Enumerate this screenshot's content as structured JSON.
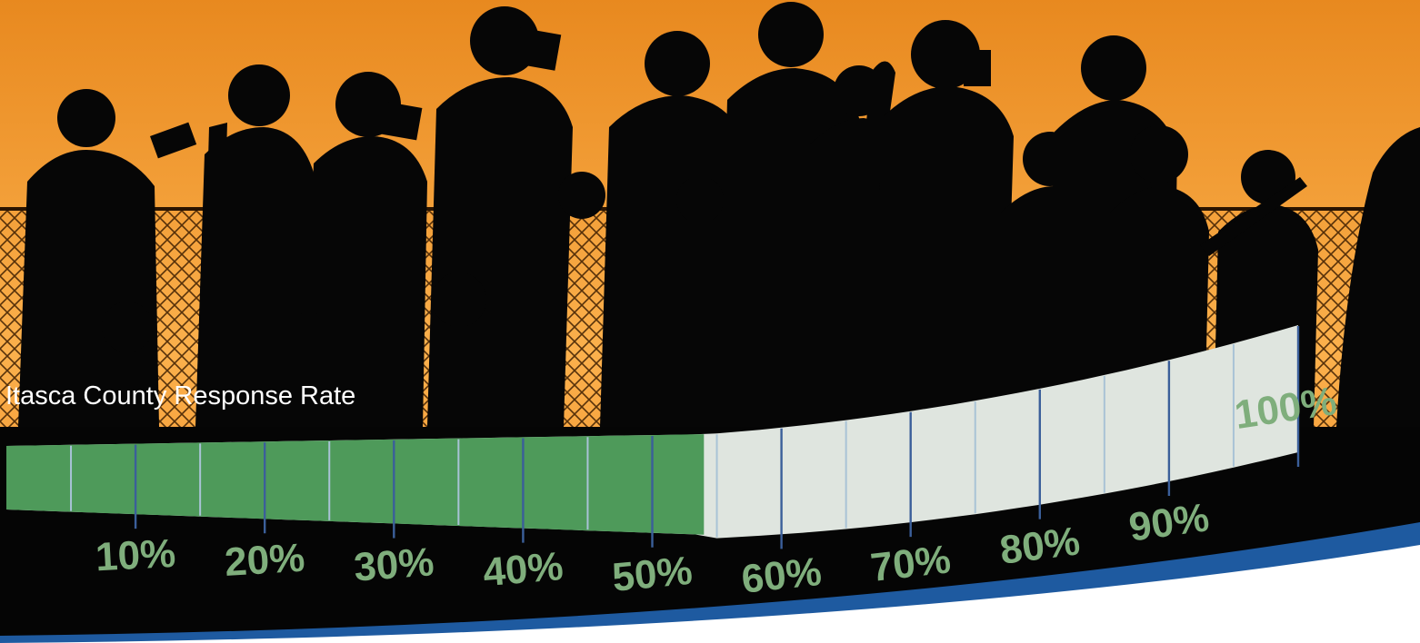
{
  "chart_data": {
    "type": "bar",
    "title": "Itasca County Response Rate",
    "value": 54,
    "unit": "%",
    "range": [
      0,
      100
    ],
    "tick_labels": [
      "10%",
      "20%",
      "30%",
      "40%",
      "50%",
      "60%",
      "70%",
      "80%",
      "90%",
      "100%"
    ]
  },
  "colors": {
    "filled": "#4e9a5a",
    "unfilled": "#dfe5df",
    "tick_major": "#3b5f9a",
    "tick_minor": "#a9c3d6",
    "label": "#7fae7c",
    "title": "#ffffff",
    "sky_top": "#e8891f",
    "sky_bottom": "#fbb04c",
    "accent_band": "#1e5aa0"
  }
}
